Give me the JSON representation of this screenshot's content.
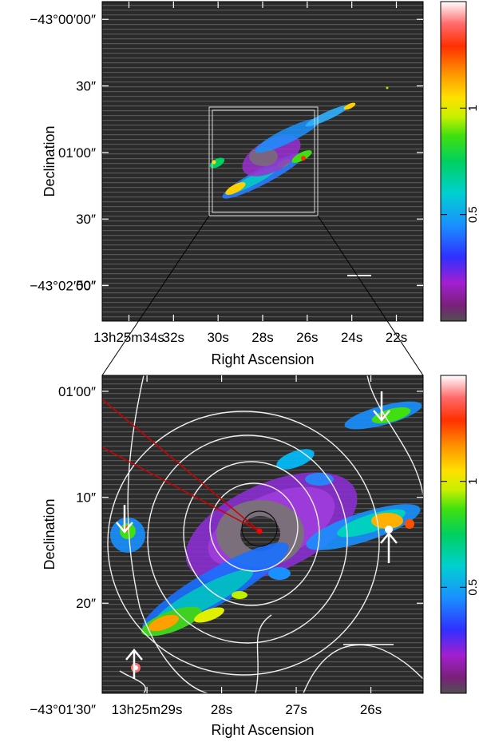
{
  "chart_data": [
    {
      "type": "heatmap",
      "title": "",
      "xlabel": "Right Ascension",
      "ylabel": "Declination",
      "x_ticks": [
        {
          "label": "13h25m34s",
          "ra_sec": 34
        },
        {
          "label": "32s",
          "ra_sec": 32
        },
        {
          "label": "30s",
          "ra_sec": 30
        },
        {
          "label": "28s",
          "ra_sec": 28
        },
        {
          "label": "26s",
          "ra_sec": 26
        },
        {
          "label": "24s",
          "ra_sec": 24
        },
        {
          "label": "22s",
          "ra_sec": 22
        }
      ],
      "y_ticks": [
        {
          "label": "−43°00′00″",
          "dec_arcsec": 0
        },
        {
          "label": "30″",
          "dec_arcsec": 30
        },
        {
          "label": "01′00″",
          "dec_arcsec": 60
        },
        {
          "label": "30″",
          "dec_arcsec": 90
        },
        {
          "label": "−43°02′00″",
          "dec_arcsec": 120
        }
      ],
      "xlim_ra_sec": [
        35.2,
        20.8
      ],
      "ylim_dec_arcsec": [
        -8,
        136
      ],
      "zoom_box_ra_sec": [
        29.6,
        25.3
      ],
      "zoom_box_dec_arcsec": [
        58.5,
        88.5
      ],
      "colorbar": {
        "ticks": [
          {
            "label": "0.5",
            "value": 0.5
          },
          {
            "label": "1",
            "value": 1.0
          }
        ],
        "range": [
          0,
          1.5
        ]
      }
    },
    {
      "type": "heatmap",
      "title": "",
      "xlabel": "Right Ascension",
      "ylabel": "Declination",
      "x_ticks": [
        {
          "label": "13h25m29s",
          "ra_sec": 29
        },
        {
          "label": "28s",
          "ra_sec": 28
        },
        {
          "label": "27s",
          "ra_sec": 27
        },
        {
          "label": "26s",
          "ra_sec": 26
        }
      ],
      "y_ticks": [
        {
          "label": "50″",
          "dec_arcsec": 50
        },
        {
          "label": "01′00″",
          "dec_arcsec": 60
        },
        {
          "label": "10″",
          "dec_arcsec": 70
        },
        {
          "label": "20″",
          "dec_arcsec": 80
        },
        {
          "label": "−43°01′30″",
          "dec_arcsec": 90
        }
      ],
      "xlim_ra_sec": [
        29.6,
        25.3
      ],
      "ylim_dec_arcsec": [
        58.5,
        88.5
      ],
      "colorbar": {
        "ticks": [
          {
            "label": "0.5",
            "value": 0.5
          },
          {
            "label": "1",
            "value": 1.0
          }
        ],
        "range": [
          0,
          1.5
        ]
      }
    }
  ]
}
